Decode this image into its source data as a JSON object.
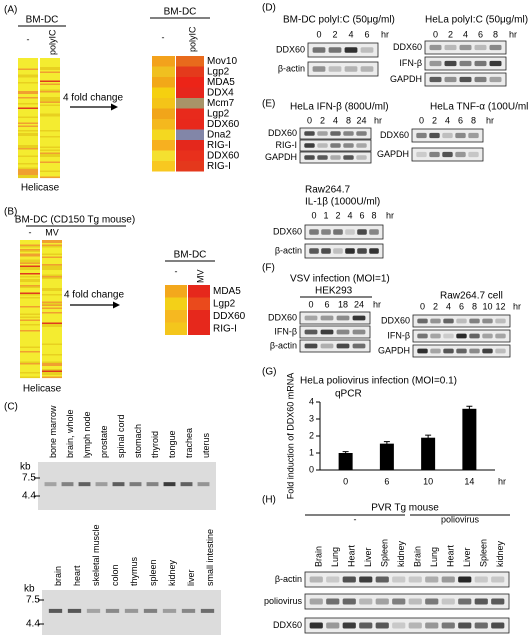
{
  "panel_a": {
    "label": "(A)",
    "heatmap_title": "BM-DC",
    "columns": [
      "-",
      "polyIC"
    ],
    "axis_label": "Helicase",
    "arrow_label": "4 fold change",
    "detail_title": "BM-DC",
    "detail_columns": [
      "-",
      "polyIC"
    ],
    "genes": [
      "Mov10",
      "Lgp2",
      "MDA5",
      "DDX4",
      "Mcm7",
      "Lgp2",
      "DDX60",
      "Dna2",
      "RIG-I",
      "DDX60",
      "RIG-I"
    ]
  },
  "panel_b": {
    "label": "(B)",
    "heatmap_title": "BM-DC (CD150 Tg mouse)",
    "columns": [
      "-",
      "MV"
    ],
    "axis_label": "Helicase",
    "arrow_label": "4 fold change",
    "detail_title": "BM-DC",
    "detail_columns": [
      "-",
      "MV"
    ],
    "genes": [
      "MDA5",
      "Lgp2",
      "DDX60",
      "RIG-I"
    ]
  },
  "panel_c": {
    "label": "(C)",
    "blot_1": {
      "unit": "kb",
      "markers": [
        "7.5",
        "4.4"
      ],
      "lanes": [
        "bone marrow",
        "brain, whole",
        "lymph node",
        "prostate",
        "spinal cord",
        "stomach",
        "thyroid",
        "tongue",
        "trachea",
        "uterus"
      ]
    },
    "blot_2": {
      "unit": "kb",
      "markers": [
        "7.5",
        "4.4"
      ],
      "lanes": [
        "brain",
        "heart",
        "skeletal muscle",
        "colon",
        "thymus",
        "spleen",
        "kidney",
        "liver",
        "small intestine"
      ]
    }
  },
  "panel_d": {
    "label": "(D)",
    "blots": [
      {
        "title": "BM-DC polyI:C (50μg/ml)",
        "lanes": [
          "0",
          "2",
          "4",
          "6"
        ],
        "unit": "hr",
        "rows": [
          "DDX60",
          "β-actin"
        ]
      },
      {
        "title": "HeLa polyI:C (50μg/ml)",
        "lanes": [
          "0",
          "2",
          "4",
          "6",
          "8"
        ],
        "unit": "hr",
        "rows": [
          "DDX60",
          "IFN-β",
          "GAPDH"
        ]
      }
    ]
  },
  "panel_e": {
    "label": "(E)",
    "blots": [
      {
        "title": "HeLa IFN-β (800U/ml)",
        "lanes": [
          "0",
          "2",
          "4",
          "8",
          "24"
        ],
        "unit": "hr",
        "rows": [
          "DDX60",
          "RIG-I",
          "GAPDH"
        ]
      },
      {
        "title": "HeLa TNF-α (100U/ml)",
        "lanes": [
          "0",
          "2",
          "4",
          "6",
          "8"
        ],
        "unit": "hr",
        "rows": [
          "DDX60",
          "GAPDH"
        ]
      },
      {
        "title": "Raw264.7",
        "subtitle": "IL-1β (1000U/ml)",
        "lanes": [
          "0",
          "1",
          "2",
          "4",
          "6",
          "8"
        ],
        "unit": "hr",
        "rows": [
          "DDX60",
          "β-actin"
        ]
      }
    ]
  },
  "panel_f": {
    "label": "(F)",
    "title": "VSV infection (MOI=1)",
    "blots": [
      {
        "title": "HEK293",
        "lanes": [
          "0",
          "6",
          "18",
          "24"
        ],
        "unit": "hr",
        "rows": [
          "DDX60",
          "IFN-β",
          "β-actin"
        ]
      },
      {
        "title": "Raw264.7 cell",
        "lanes": [
          "0",
          "2",
          "4",
          "6",
          "8",
          "10",
          "12"
        ],
        "unit": "hr",
        "rows": [
          "DDX60",
          "IFN-β",
          "GAPDH"
        ]
      }
    ]
  },
  "chart_data": {
    "type": "bar",
    "label": "(G)",
    "title": "HeLa poliovirus infection (MOI=0.1)",
    "subtitle": "qPCR",
    "y_label": "Fold induction of DDX60 mRNA",
    "x_unit": "hr",
    "categories": [
      "0",
      "6",
      "10",
      "14"
    ],
    "values": [
      1.0,
      1.55,
      1.9,
      3.6
    ],
    "errors": [
      0.08,
      0.12,
      0.15,
      0.15
    ],
    "color": "#000000",
    "ylim": [
      0,
      4
    ],
    "yticks": [
      0,
      1,
      2,
      3,
      4
    ]
  },
  "panel_h": {
    "label": "(H)",
    "title": "PVR Tg mouse",
    "groups": [
      "-",
      "poliovirus"
    ],
    "lanes": [
      "Brain",
      "Lung",
      "Heart",
      "Liver",
      "Spleen",
      "kidney",
      "Brain",
      "Lung",
      "Heart",
      "Liver",
      "Spleen",
      "kidney"
    ],
    "rows": [
      "β-actin",
      "poliovirus",
      "DDX60"
    ]
  }
}
